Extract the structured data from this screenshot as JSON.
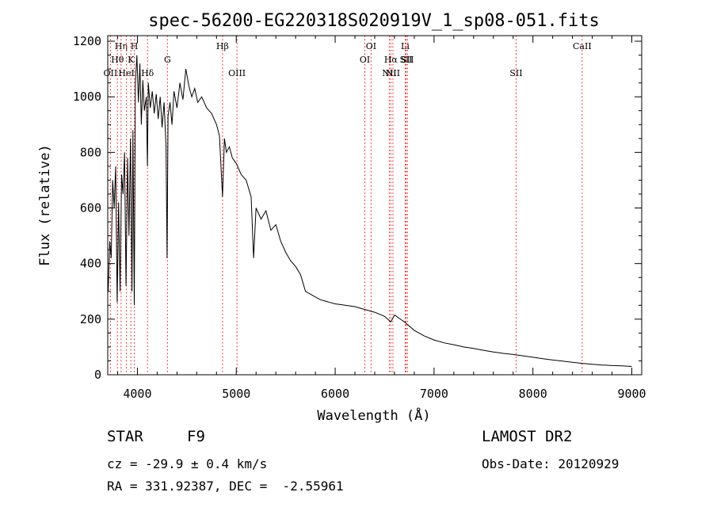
{
  "chart_data": {
    "type": "line",
    "title": "spec-56200-EG220318S020919V_1_sp08-051.fits",
    "xlabel": "Wavelength (Å)",
    "ylabel": "Flux (relative)",
    "xlim": [
      3700,
      9100
    ],
    "ylim": [
      0,
      1220
    ],
    "x_ticks": [
      4000,
      5000,
      6000,
      7000,
      8000,
      9000
    ],
    "y_ticks": [
      0,
      200,
      400,
      600,
      800,
      1000,
      1200
    ],
    "grid": false,
    "legend": "none",
    "line_color": "#000000",
    "marker_color": "#ff0000",
    "series": [
      {
        "x": [
          3705,
          3720,
          3735,
          3750,
          3765,
          3780,
          3795,
          3810,
          3825,
          3840,
          3855,
          3870,
          3885,
          3900,
          3915,
          3930,
          3945,
          3955,
          3968,
          3980,
          3995,
          4010,
          4025,
          4040,
          4055,
          4070,
          4090,
          4101,
          4110,
          4130,
          4150,
          4170,
          4190,
          4210,
          4230,
          4250,
          4270,
          4290,
          4300,
          4310,
          4330,
          4350,
          4370,
          4400,
          4430,
          4460,
          4490,
          4520,
          4550,
          4580,
          4610,
          4650,
          4700,
          4750,
          4800,
          4830,
          4861,
          4880,
          4900,
          4930,
          4960,
          5000,
          5050,
          5100,
          5150,
          5175,
          5200,
          5250,
          5300,
          5350,
          5400,
          5450,
          5500,
          5550,
          5600,
          5650,
          5700,
          5750,
          5800,
          5850,
          5900,
          5950,
          6000,
          6100,
          6200,
          6300,
          6400,
          6500,
          6563,
          6600,
          6700,
          6800,
          6900,
          7000,
          7100,
          7200,
          7300,
          7400,
          7500,
          7600,
          7700,
          7800,
          7900,
          8000,
          8100,
          8200,
          8300,
          8400,
          8500,
          8600,
          8700,
          8800,
          8900,
          9000
        ],
        "y": [
          300,
          480,
          420,
          700,
          600,
          750,
          260,
          620,
          300,
          720,
          650,
          800,
          320,
          780,
          500,
          850,
          300,
          880,
          250,
          1050,
          1150,
          980,
          1120,
          900,
          1060,
          950,
          1000,
          750,
          1050,
          960,
          1020,
          940,
          1010,
          920,
          1000,
          890,
          980,
          820,
          420,
          930,
          980,
          900,
          1020,
          960,
          1050,
          990,
          1100,
          1040,
          1000,
          1030,
          980,
          1000,
          960,
          940,
          900,
          860,
          640,
          850,
          800,
          820,
          780,
          760,
          720,
          700,
          640,
          420,
          600,
          560,
          590,
          520,
          540,
          480,
          440,
          410,
          390,
          360,
          300,
          290,
          280,
          270,
          265,
          260,
          255,
          250,
          245,
          235,
          225,
          210,
          190,
          215,
          190,
          160,
          140,
          125,
          115,
          108,
          100,
          95,
          88,
          82,
          77,
          73,
          68,
          63,
          58,
          53,
          49,
          45,
          41,
          38,
          35,
          33,
          32,
          30
        ]
      }
    ],
    "lines": [
      {
        "name": "OII",
        "x": 3727,
        "row": 3
      },
      {
        "name": "Hθ",
        "x": 3798,
        "row": 2
      },
      {
        "name": "Hη",
        "x": 3835,
        "row": 1
      },
      {
        "name": "HeI",
        "x": 3889,
        "row": 3
      },
      {
        "name": "K",
        "x": 3934,
        "row": 2
      },
      {
        "name": "H",
        "x": 3969,
        "row": 1
      },
      {
        "name": "Hδ",
        "x": 4102,
        "row": 3
      },
      {
        "name": "G",
        "x": 4304,
        "row": 2
      },
      {
        "name": "Hβ",
        "x": 4861,
        "row": 1
      },
      {
        "name": "OIII",
        "x": 5007,
        "row": 3
      },
      {
        "name": "OI",
        "x": 6300,
        "row": 2
      },
      {
        "name": "OI",
        "x": 6363,
        "row": 1
      },
      {
        "name": "NII",
        "x": 6548,
        "row": 3
      },
      {
        "name": "Hα",
        "x": 6563,
        "row": 2
      },
      {
        "name": "NII",
        "x": 6584,
        "row": 3
      },
      {
        "name": "Li",
        "x": 6708,
        "row": 1
      },
      {
        "name": "SII",
        "x": 6717,
        "row": 2
      },
      {
        "name": "SII",
        "x": 6731,
        "row": 2
      },
      {
        "name": "SII",
        "x": 7830,
        "row": 3
      },
      {
        "name": "CaII",
        "x": 8498,
        "row": 1
      }
    ]
  },
  "info": {
    "object_type": "STAR",
    "subclass": "F9",
    "survey": "LAMOST DR2",
    "cz": "cz = -29.9 ± 0.4 km/s",
    "obs_date": "Obs-Date: 20120929",
    "coords": "RA = 331.92387, DEC =  -2.55961"
  }
}
